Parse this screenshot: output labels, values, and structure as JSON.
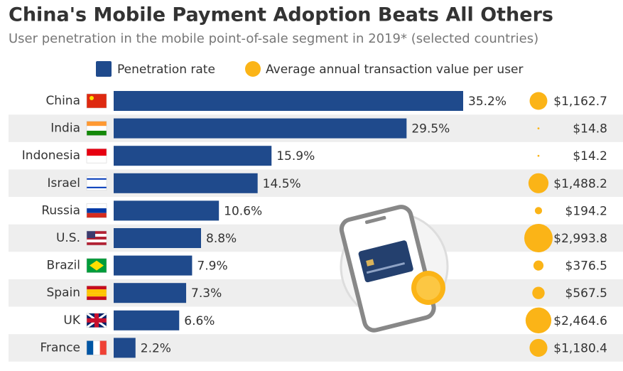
{
  "chart_data": {
    "type": "bar",
    "title": "China's Mobile Payment Adoption Beats All Others",
    "subtitle": "User penetration in the mobile point-of-sale segment in 2019* (selected countries)",
    "categories": [
      "China",
      "India",
      "Indonesia",
      "Israel",
      "Russia",
      "U.S.",
      "Brazil",
      "Spain",
      "UK",
      "France"
    ],
    "series": [
      {
        "name": "Penetration rate",
        "type": "bar",
        "color": "#1f4a8c",
        "values": [
          35.2,
          29.5,
          15.9,
          14.5,
          10.6,
          8.8,
          7.9,
          7.3,
          6.6,
          2.2
        ],
        "value_labels": [
          "35.2%",
          "29.5%",
          "15.9%",
          "14.5%",
          "10.6%",
          "8.8%",
          "7.9%",
          "7.3%",
          "6.6%",
          "2.2%"
        ]
      },
      {
        "name": "Average annual transaction value per user",
        "type": "bubble",
        "color": "#fbb417",
        "values": [
          1162.7,
          14.8,
          14.2,
          1488.2,
          194.2,
          2993.8,
          376.5,
          567.5,
          2464.6,
          1180.4
        ],
        "value_labels": [
          "$1,162.7",
          "$14.8",
          "$14.2",
          "$1,488.2",
          "$194.2",
          "$2,993.8",
          "$376.5",
          "$567.5",
          "$2,464.6",
          "$1,180.4"
        ]
      }
    ]
  }
}
